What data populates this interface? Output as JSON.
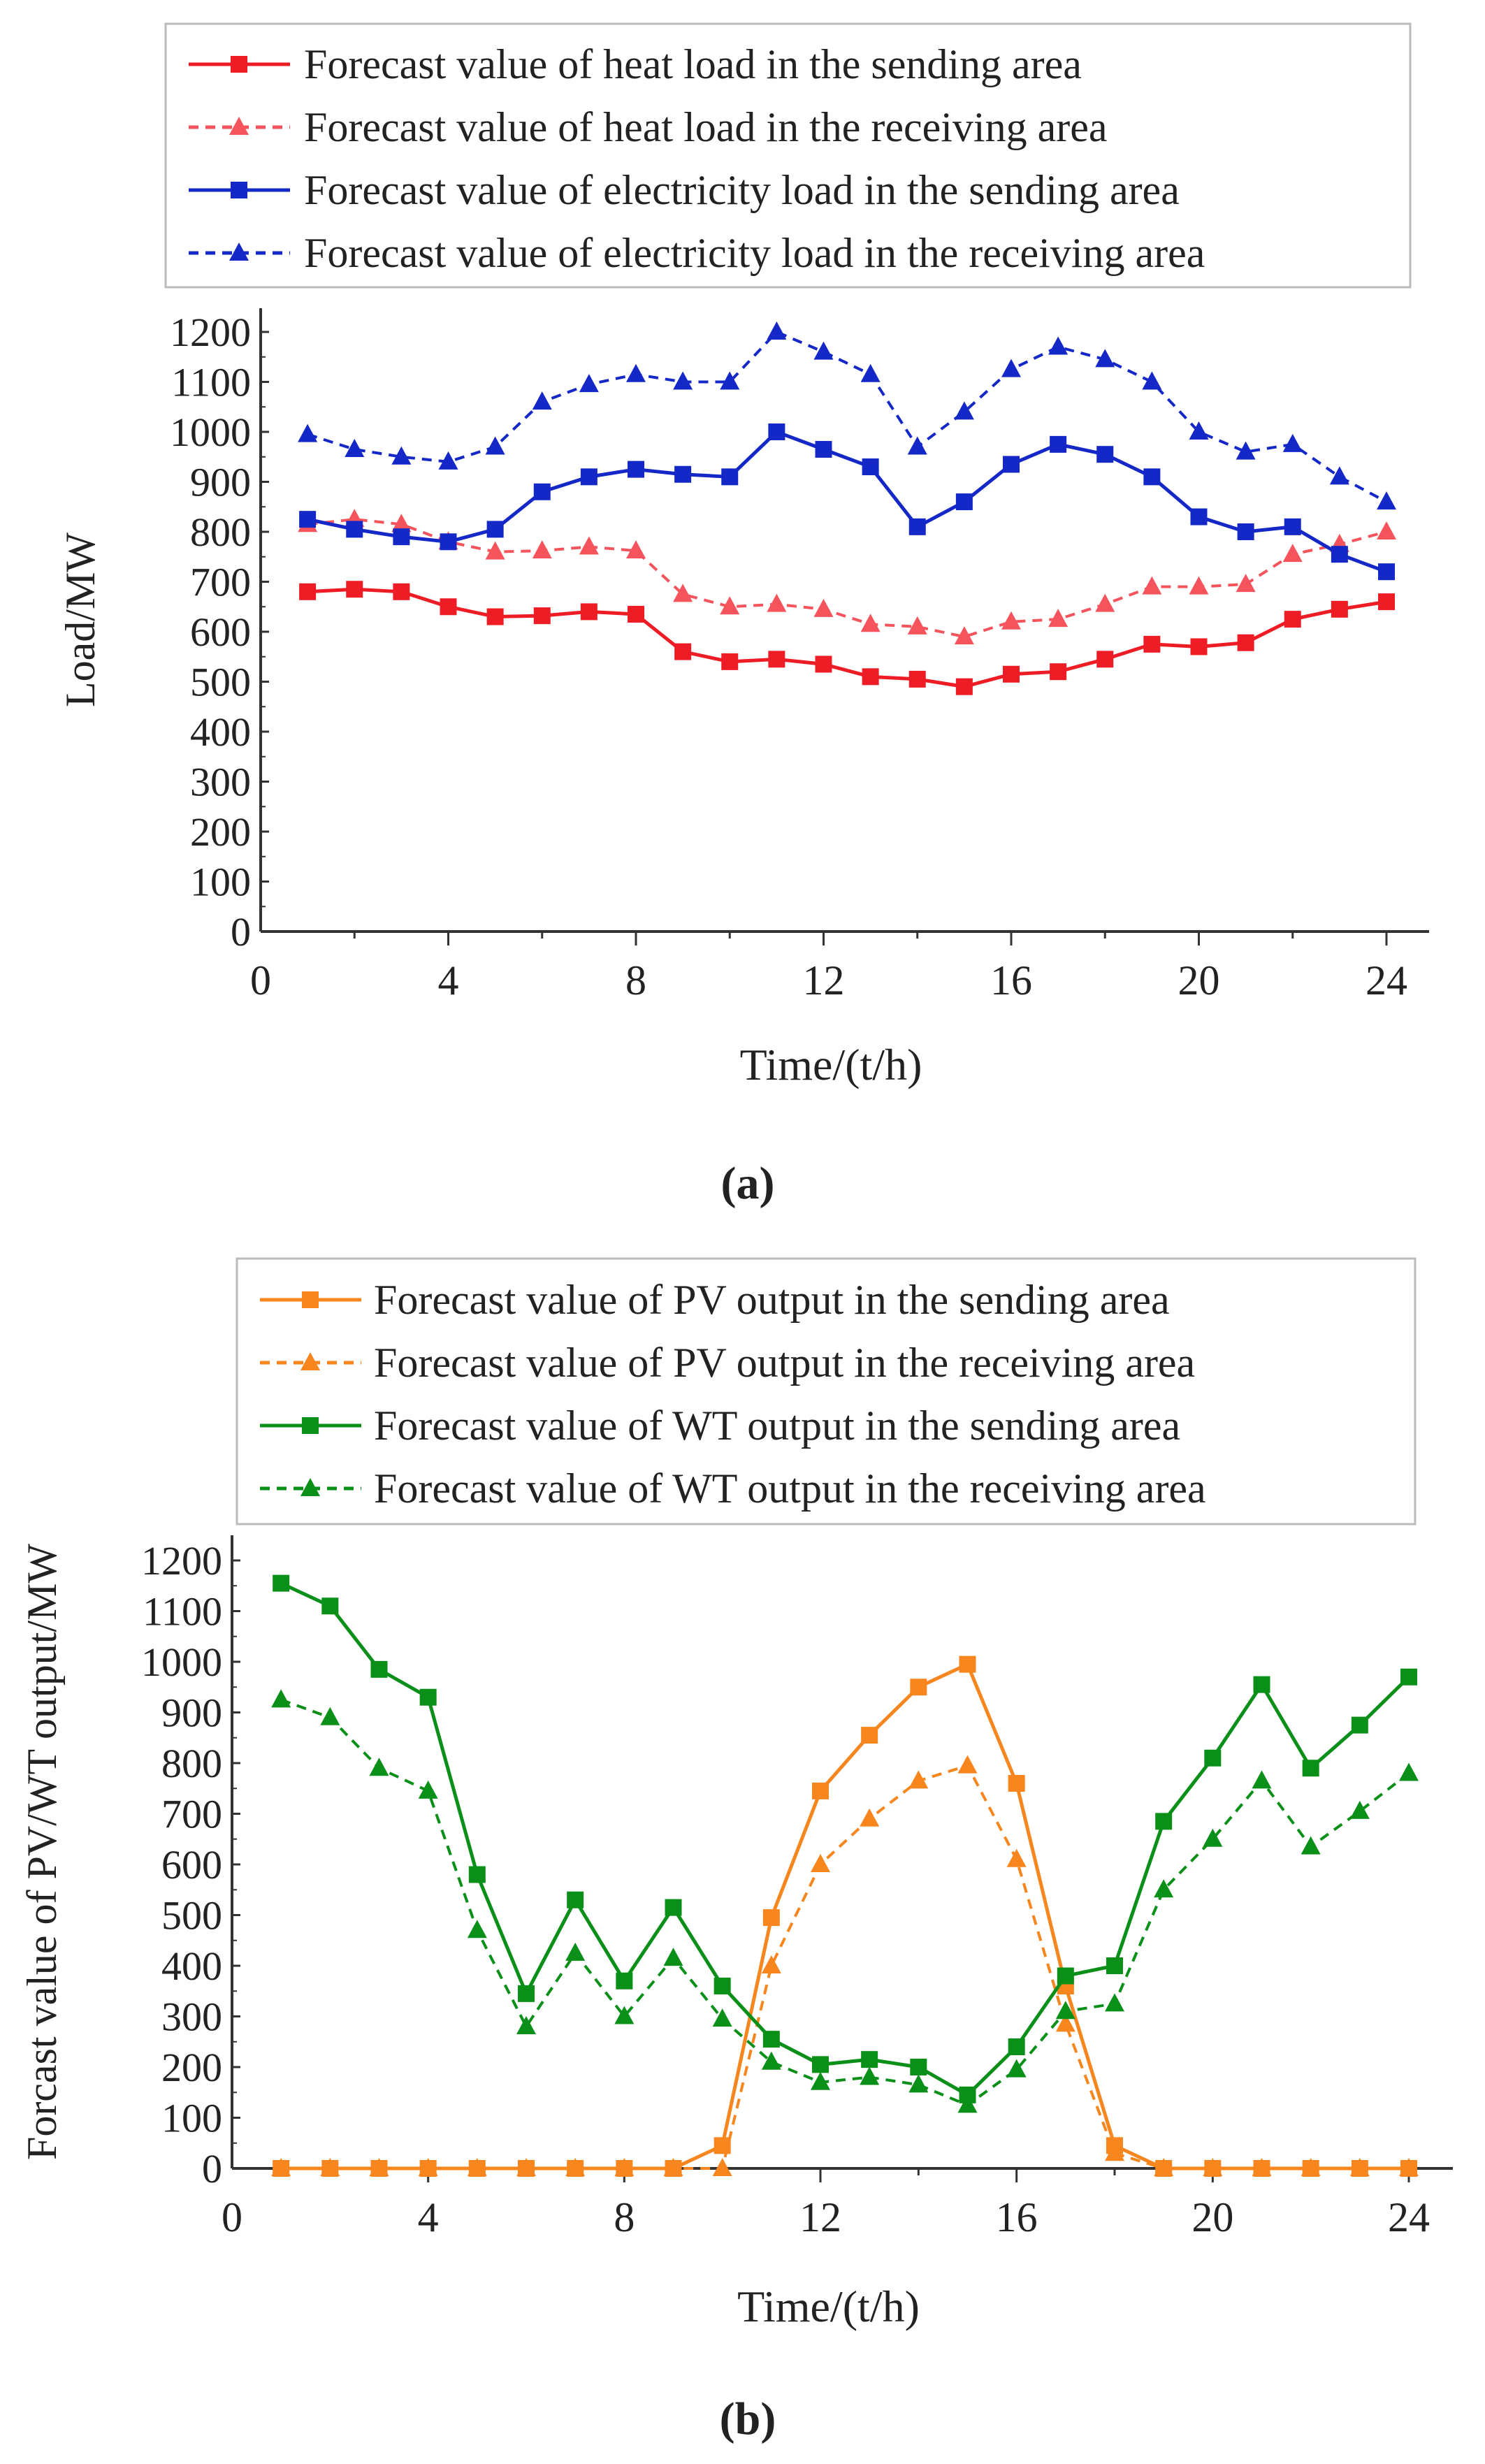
{
  "chart_data": [
    {
      "type": "line",
      "caption": "(a)",
      "xlabel": "Time/(t/h)",
      "ylabel": "Load/MW",
      "xlim": [
        0,
        25
      ],
      "ylim": [
        0,
        1200
      ],
      "xticks": [
        0,
        4,
        8,
        12,
        16,
        20,
        24
      ],
      "yticks": [
        0,
        100,
        200,
        300,
        400,
        500,
        600,
        700,
        800,
        900,
        1000,
        1100,
        1200
      ],
      "grid": false,
      "legend_position": "top",
      "x": [
        1,
        2,
        3,
        4,
        5,
        6,
        7,
        8,
        9,
        10,
        11,
        12,
        13,
        14,
        15,
        16,
        17,
        18,
        19,
        20,
        21,
        22,
        23,
        24
      ],
      "series": [
        {
          "name": "Forecast value of heat load in the sending area",
          "color": "#ee1c25",
          "dashed": false,
          "marker": "square",
          "values": [
            680,
            685,
            680,
            650,
            630,
            632,
            640,
            635,
            560,
            540,
            545,
            535,
            510,
            505,
            490,
            515,
            520,
            545,
            575,
            570,
            578,
            625,
            645,
            660
          ]
        },
        {
          "name": "Forecast value of heat load in the receiving area",
          "color": "#f5545c",
          "dashed": true,
          "marker": "triangle",
          "values": [
            815,
            825,
            815,
            780,
            760,
            762,
            770,
            762,
            675,
            650,
            655,
            645,
            615,
            610,
            590,
            620,
            625,
            655,
            690,
            690,
            695,
            755,
            775,
            800
          ]
        },
        {
          "name": "Forecast value of electricity load in the sending area",
          "color": "#1428c8",
          "dashed": false,
          "marker": "square",
          "values": [
            825,
            805,
            790,
            780,
            805,
            880,
            910,
            925,
            915,
            910,
            1000,
            965,
            930,
            810,
            860,
            935,
            975,
            955,
            910,
            830,
            800,
            810,
            755,
            720
          ]
        },
        {
          "name": "Forecast value of electricity load in the receiving area",
          "color": "#1428c8",
          "dashed": true,
          "marker": "triangle",
          "values": [
            995,
            965,
            950,
            940,
            970,
            1060,
            1095,
            1115,
            1100,
            1100,
            1200,
            1160,
            1115,
            970,
            1040,
            1125,
            1170,
            1145,
            1100,
            1000,
            960,
            975,
            910,
            860
          ]
        }
      ]
    },
    {
      "type": "line",
      "caption": "(b)",
      "xlabel": "Time/(t/h)",
      "ylabel": "Forcast value of PV/WT output/MW",
      "xlim": [
        0,
        25
      ],
      "ylim": [
        0,
        1200
      ],
      "xticks": [
        0,
        4,
        8,
        12,
        16,
        20,
        24
      ],
      "yticks": [
        0,
        100,
        200,
        300,
        400,
        500,
        600,
        700,
        800,
        900,
        1000,
        1100,
        1200
      ],
      "grid": false,
      "legend_position": "top",
      "x": [
        1,
        2,
        3,
        4,
        5,
        6,
        7,
        8,
        9,
        10,
        11,
        12,
        13,
        14,
        15,
        16,
        17,
        18,
        19,
        20,
        21,
        22,
        23,
        24
      ],
      "series": [
        {
          "name": "Forecast value of PV output in the sending area",
          "color": "#f7861e",
          "dashed": false,
          "marker": "square",
          "values": [
            0,
            0,
            0,
            0,
            0,
            0,
            0,
            0,
            0,
            45,
            495,
            745,
            855,
            950,
            995,
            760,
            360,
            45,
            0,
            0,
            0,
            0,
            0,
            0
          ]
        },
        {
          "name": "Forecast value of PV output in the receiving area",
          "color": "#f7861e",
          "dashed": true,
          "marker": "triangle",
          "values": [
            0,
            0,
            0,
            0,
            0,
            0,
            0,
            0,
            0,
            0,
            400,
            600,
            690,
            765,
            795,
            610,
            285,
            30,
            0,
            0,
            0,
            0,
            0,
            0
          ]
        },
        {
          "name": "Forecast value of WT output in the sending area",
          "color": "#0a9018",
          "dashed": false,
          "marker": "square",
          "values": [
            1155,
            1110,
            985,
            930,
            580,
            345,
            530,
            370,
            515,
            360,
            255,
            205,
            215,
            200,
            145,
            240,
            380,
            400,
            685,
            810,
            955,
            790,
            875,
            970
          ]
        },
        {
          "name": "Forecast value of WT output in the receiving area",
          "color": "#0a9018",
          "dashed": true,
          "marker": "triangle",
          "values": [
            925,
            890,
            790,
            745,
            470,
            280,
            425,
            300,
            415,
            295,
            210,
            170,
            180,
            165,
            125,
            195,
            310,
            325,
            550,
            650,
            765,
            635,
            705,
            780
          ]
        }
      ]
    }
  ]
}
